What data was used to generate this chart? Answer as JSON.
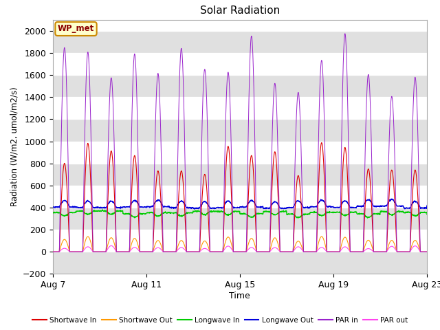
{
  "title": "Solar Radiation",
  "xlabel": "Time",
  "ylabel": "Radiation (W/m2, umol/m2/s)",
  "ylim": [
    -200,
    2100
  ],
  "yticks": [
    -200,
    0,
    200,
    400,
    600,
    800,
    1000,
    1200,
    1400,
    1600,
    1800,
    2000
  ],
  "xtick_labels": [
    "Aug 7",
    "Aug 11",
    "Aug 15",
    "Aug 19",
    "Aug 23"
  ],
  "xtick_positions": [
    0,
    4,
    8,
    12,
    16
  ],
  "fig_bg_color": "#ffffff",
  "plot_bg_color": "#ffffff",
  "band_color_dark": "#e0e0e0",
  "annotation_text": "WP_met",
  "annotation_bg": "#ffffcc",
  "annotation_border": "#cc8800",
  "colors": {
    "shortwave_in": "#dd0000",
    "shortwave_out": "#ff9900",
    "longwave_in": "#00cc00",
    "longwave_out": "#0000dd",
    "par_in": "#9922cc",
    "par_out": "#ff44ee"
  },
  "legend_labels": [
    "Shortwave In",
    "Shortwave Out",
    "Longwave In",
    "Longwave Out",
    "PAR in",
    "PAR out"
  ],
  "num_days": 17,
  "samples_per_day": 96
}
